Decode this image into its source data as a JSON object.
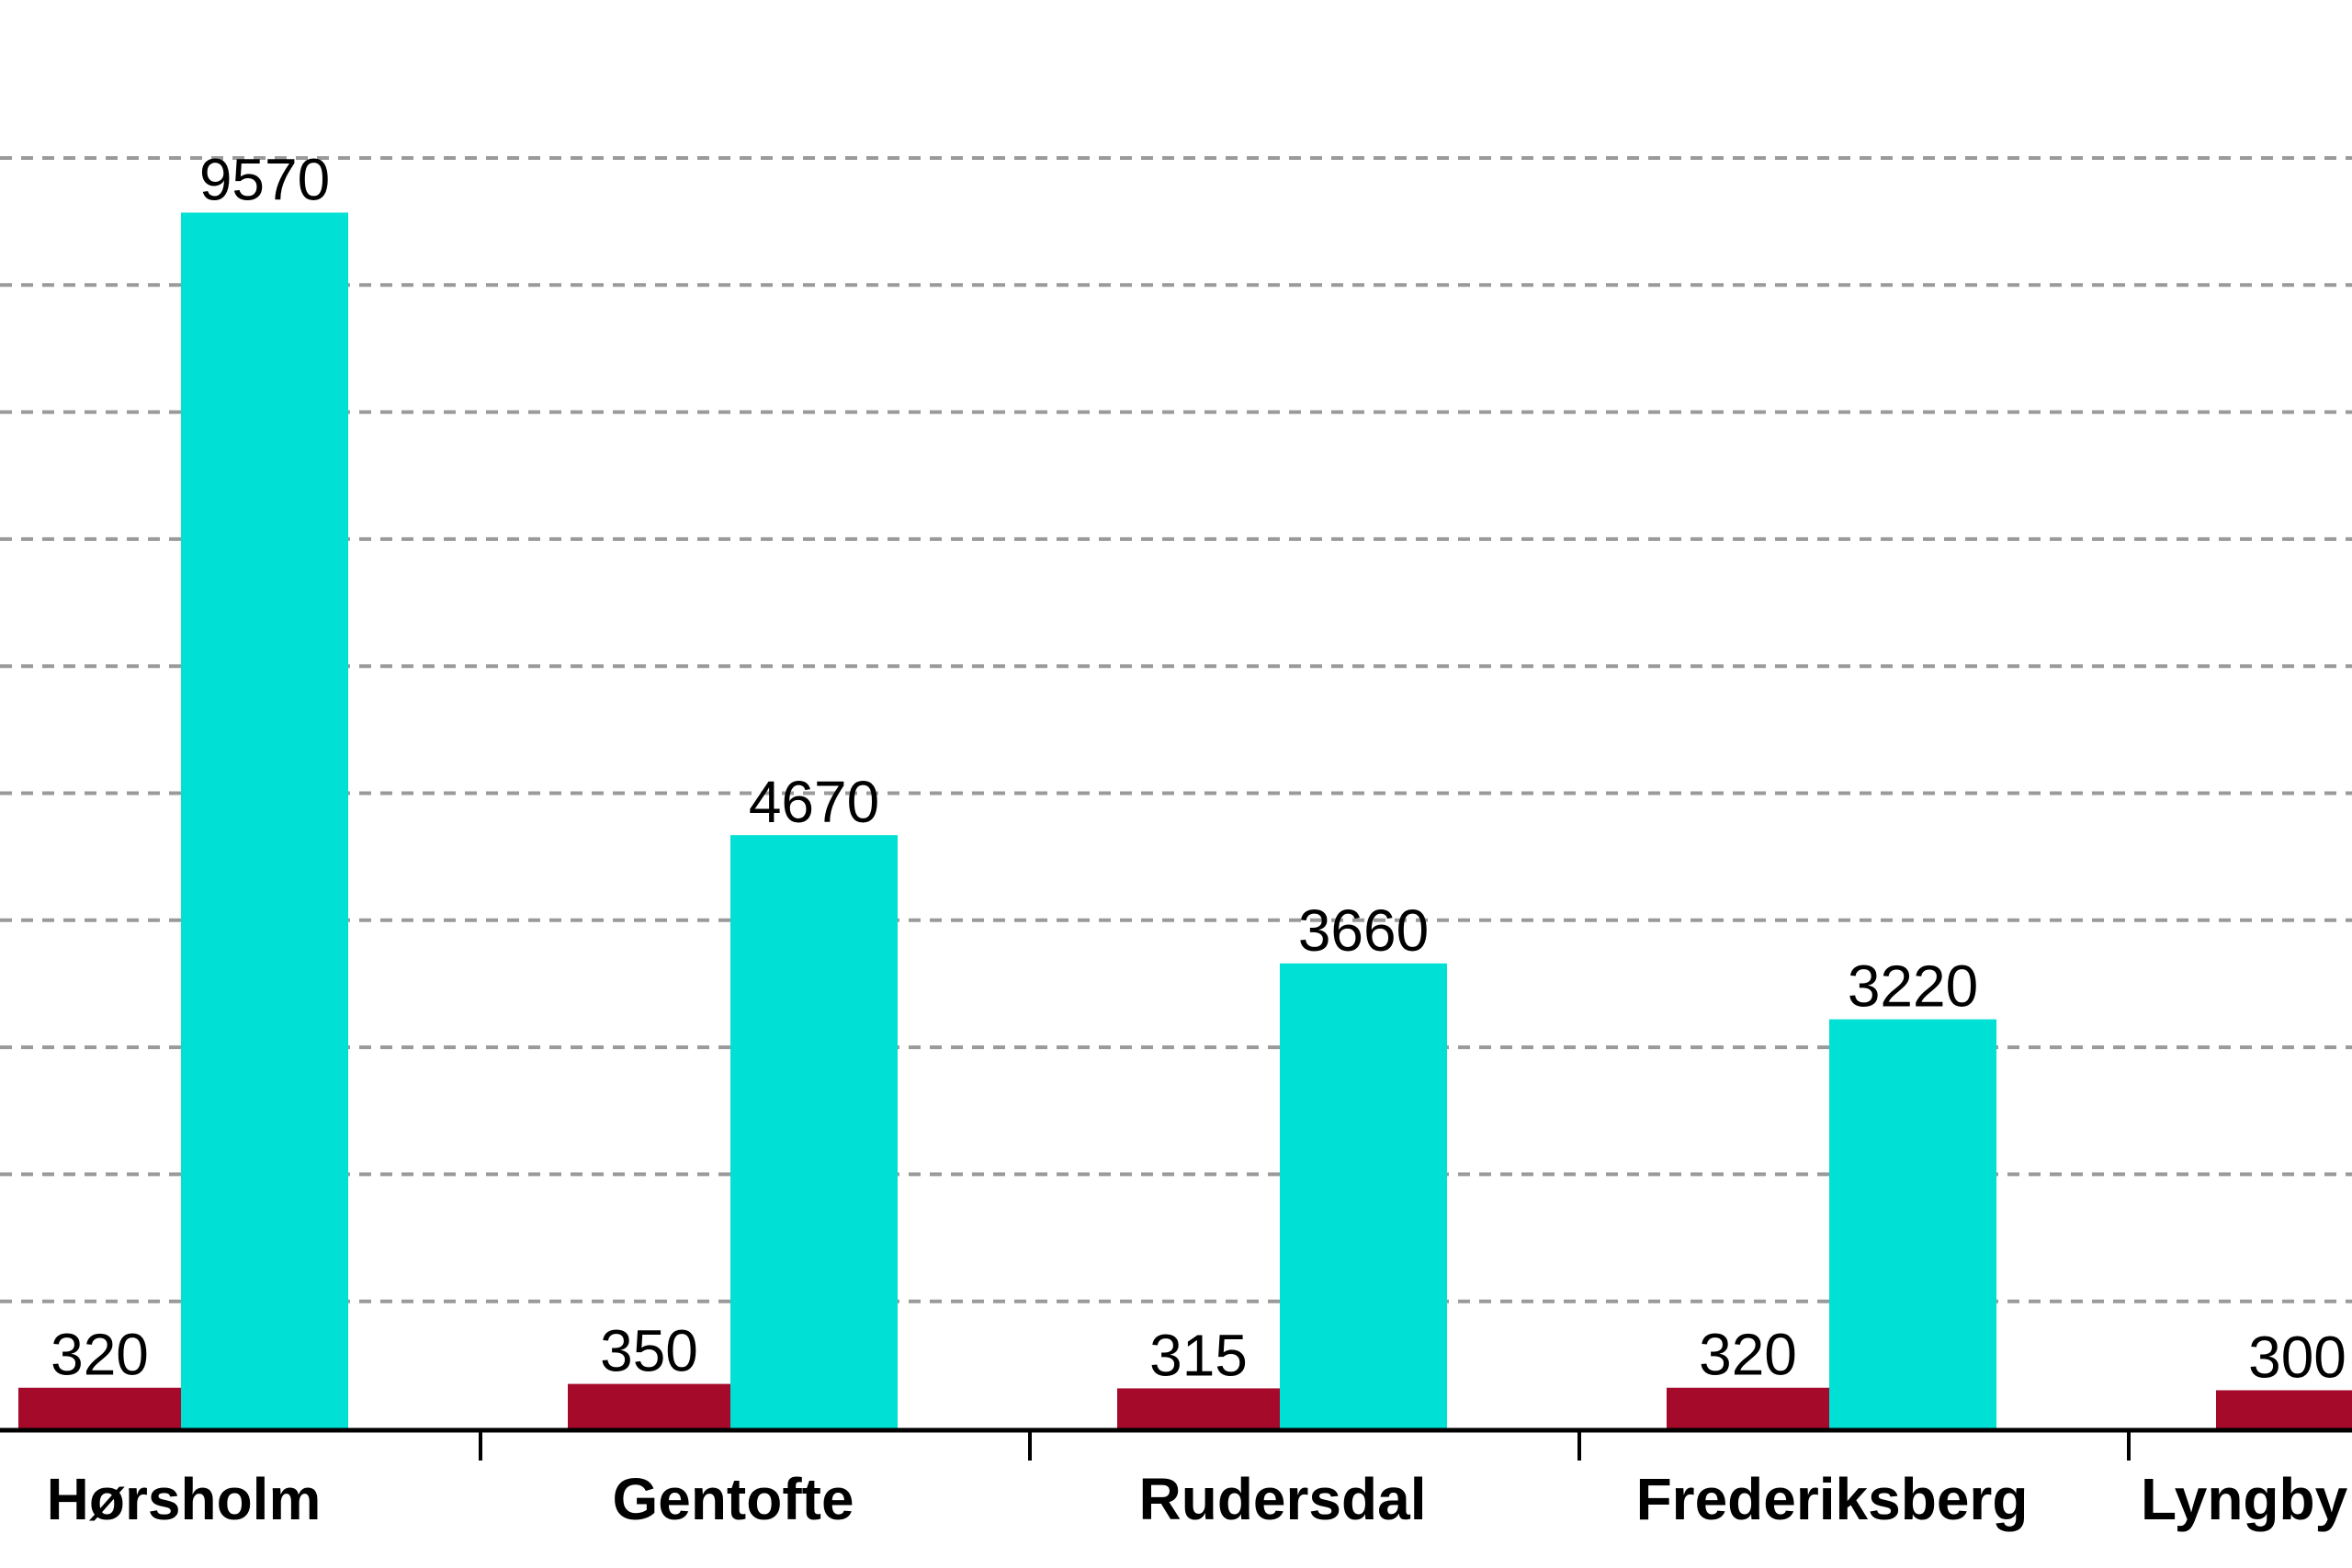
{
  "chart_data": {
    "type": "bar",
    "categories": [
      "Hørsholm",
      "Gentofte",
      "Rudersdal",
      "Frederiksberg",
      "Lyngby"
    ],
    "series": [
      {
        "values": [
          320,
          350,
          315,
          320,
          300
        ],
        "color": "#a50a2a"
      },
      {
        "values": [
          9570,
          4670,
          3660,
          3220,
          null
        ],
        "color": "#00e0d4"
      }
    ],
    "value_labels": [
      [
        "320",
        "350",
        "315",
        "320",
        "300"
      ],
      [
        "9570",
        "4670",
        "3660",
        "3220",
        ""
      ]
    ],
    "ylim": [
      0,
      10000
    ],
    "grid": true,
    "gridlines": [
      1000,
      2000,
      3000,
      4000,
      5000,
      6000,
      7000,
      8000,
      9000,
      10000
    ],
    "legend": "none"
  }
}
